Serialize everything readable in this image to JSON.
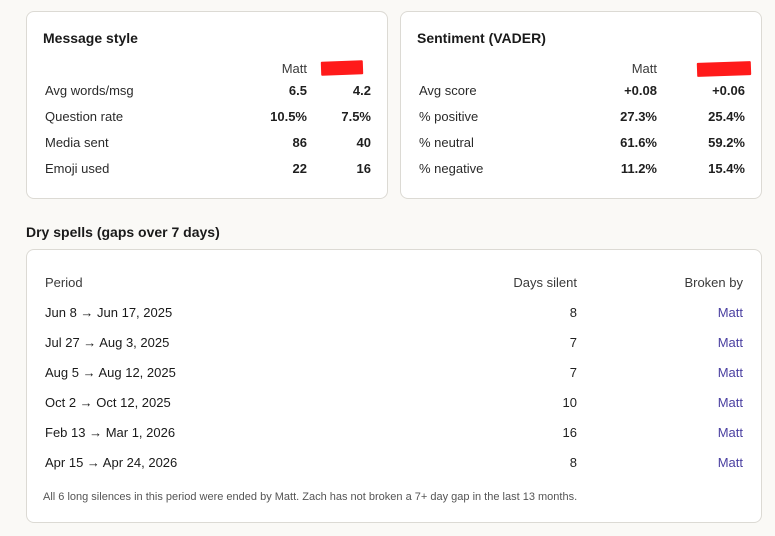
{
  "message_style": {
    "title": "Message style",
    "col1": "Matt",
    "rows": [
      {
        "label": "Avg words/msg",
        "v1": "6.5",
        "v2": "4.2"
      },
      {
        "label": "Question rate",
        "v1": "10.5%",
        "v2": "7.5%"
      },
      {
        "label": "Media sent",
        "v1": "86",
        "v2": "40"
      },
      {
        "label": "Emoji used",
        "v1": "22",
        "v2": "16"
      }
    ]
  },
  "sentiment": {
    "title": "Sentiment (VADER)",
    "col1": "Matt",
    "rows": [
      {
        "label": "Avg score",
        "v1": "+0.08",
        "v2": "+0.06"
      },
      {
        "label": "% positive",
        "v1": "27.3%",
        "v2": "25.4%"
      },
      {
        "label": "% neutral",
        "v1": "61.6%",
        "v2": "59.2%"
      },
      {
        "label": "% negative",
        "v1": "11.2%",
        "v2": "15.4%"
      }
    ]
  },
  "dry_spells": {
    "title": "Dry spells (gaps over 7 days)",
    "headers": {
      "period": "Period",
      "days": "Days silent",
      "by": "Broken by"
    },
    "rows": [
      {
        "period": "Jun 8 → Jun 17, 2025",
        "days": "8",
        "by": "Matt"
      },
      {
        "period": "Jul 27 → Aug 3, 2025",
        "days": "7",
        "by": "Matt"
      },
      {
        "period": "Aug 5 → Aug 12, 2025",
        "days": "7",
        "by": "Matt"
      },
      {
        "period": "Oct 2 → Oct 12, 2025",
        "days": "10",
        "by": "Matt"
      },
      {
        "period": "Feb 13 → Mar 1, 2026",
        "days": "16",
        "by": "Matt"
      },
      {
        "period": "Apr 15 → Apr 24, 2026",
        "days": "8",
        "by": "Matt"
      }
    ],
    "footnote": "All 6 long silences in this period were ended by Matt. Zach has not broken a 7+ day gap in the last 13 months."
  },
  "colors": {
    "redaction": "#ff1a1a",
    "link": "#4a3fa0"
  }
}
